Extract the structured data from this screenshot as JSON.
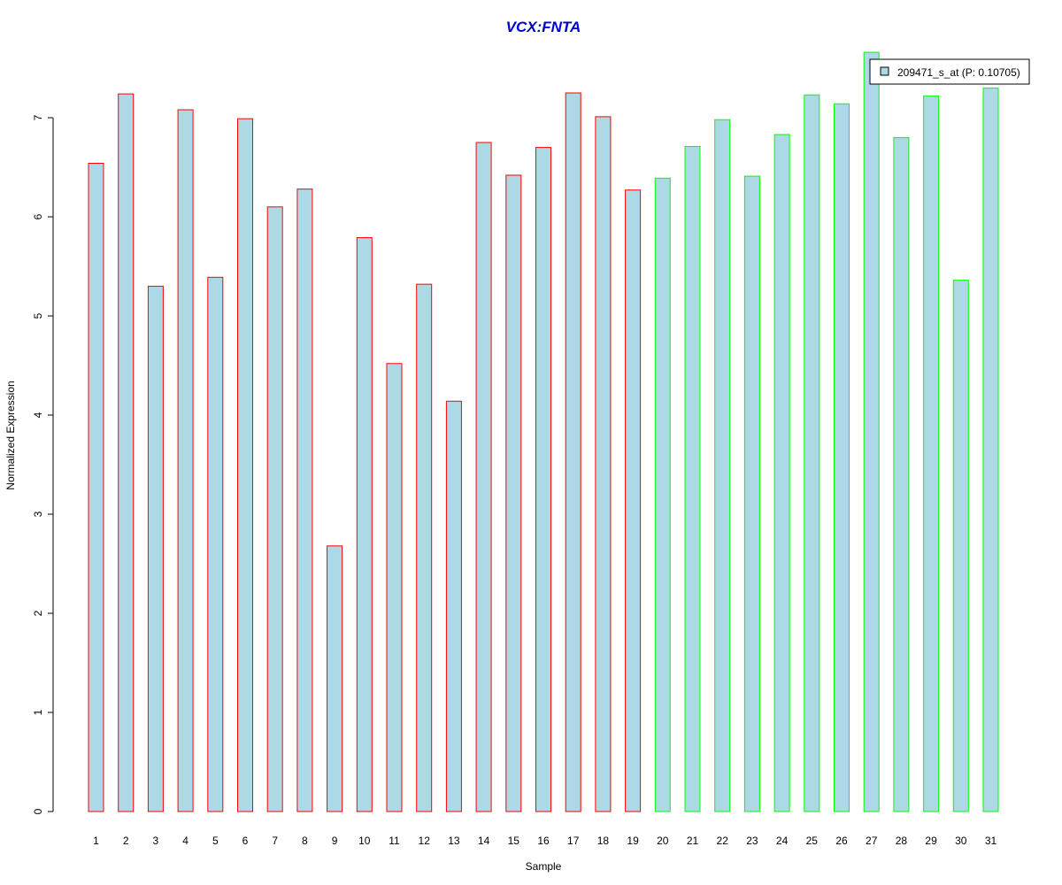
{
  "chart_data": {
    "type": "bar",
    "title": "VCX:FNTA",
    "title_color": "#0000CC",
    "xlabel": "Sample",
    "ylabel": "Normalized Expression",
    "ylim": [
      0,
      7.7
    ],
    "yticks": [
      0,
      1,
      2,
      3,
      4,
      5,
      6,
      7
    ],
    "categories": [
      "1",
      "2",
      "3",
      "4",
      "5",
      "6",
      "7",
      "8",
      "9",
      "10",
      "11",
      "12",
      "13",
      "14",
      "15",
      "16",
      "17",
      "18",
      "19",
      "20",
      "21",
      "22",
      "23",
      "24",
      "25",
      "26",
      "27",
      "28",
      "29",
      "30",
      "31"
    ],
    "series": [
      {
        "name": "209471_s_at (P: 0.10705)",
        "fill": "#ADD8E6",
        "values": [
          6.54,
          7.24,
          5.3,
          7.08,
          5.39,
          6.99,
          6.1,
          6.28,
          2.68,
          5.79,
          4.52,
          5.32,
          4.14,
          6.75,
          6.42,
          6.7,
          7.25,
          7.01,
          6.27,
          6.39,
          6.71,
          6.98,
          6.41,
          6.83,
          7.23,
          7.14,
          7.66,
          6.8,
          7.22,
          5.36,
          7.3
        ]
      }
    ],
    "group_colors": {
      "group_a": "#FF0000",
      "group_b": "#00FF00"
    },
    "group_a_count": 19,
    "legend": {
      "position": "top-right",
      "label": "209471_s_at (P: 0.10705)"
    },
    "grid": false
  }
}
